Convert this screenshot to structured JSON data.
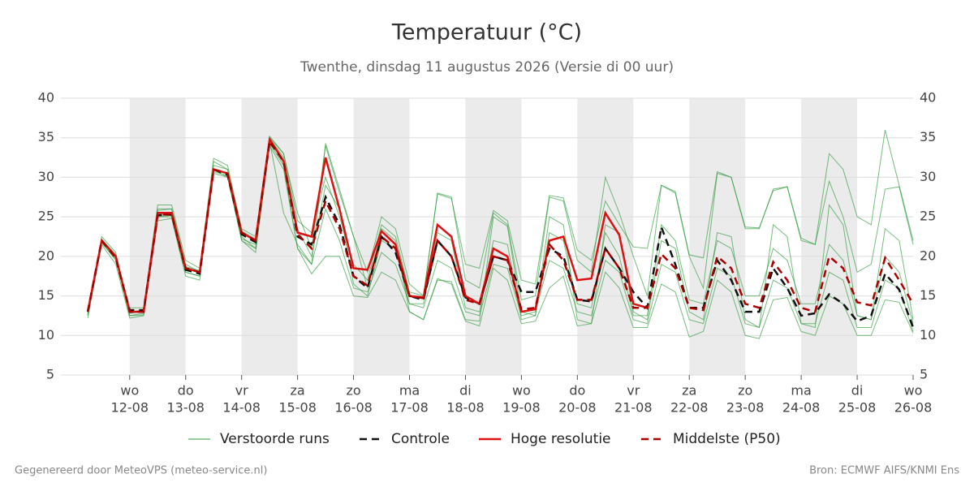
{
  "chart_data": {
    "type": "line",
    "title": "Temperatuur (°C)",
    "subtitle": "Twenthe, dinsdag 11 augustus 2026 (Versie di 00 uur)",
    "footer_left": "Gegenereerd door MeteoVPS (meteo-service.nl)",
    "footer_right": "Bron: ECMWF AIFS/KNMI Ens",
    "x": [
      11.25,
      11.5,
      11.75,
      12,
      12.25,
      12.5,
      12.75,
      13,
      13.25,
      13.5,
      13.75,
      14,
      14.25,
      14.5,
      14.75,
      15,
      15.25,
      15.5,
      15.75,
      16,
      16.25,
      16.5,
      16.75,
      17,
      17.25,
      17.5,
      17.75,
      18,
      18.25,
      18.5,
      18.75,
      19,
      19.25,
      19.5,
      19.75,
      20,
      20.25,
      20.5,
      20.75,
      21,
      21.25,
      21.5,
      21.75,
      22,
      22.25,
      22.5,
      22.75,
      23,
      23.25,
      23.5,
      23.75,
      24,
      24.25,
      24.5,
      24.75,
      25,
      25.25,
      25.5,
      25.75,
      26
    ],
    "xlim": [
      10.77,
      26
    ],
    "xticks": [
      {
        "value": 12,
        "day": "wo",
        "label": "12-08"
      },
      {
        "value": 13,
        "day": "do",
        "label": "13-08"
      },
      {
        "value": 14,
        "day": "vr",
        "label": "14-08"
      },
      {
        "value": 15,
        "day": "za",
        "label": "15-08"
      },
      {
        "value": 16,
        "day": "zo",
        "label": "16-08"
      },
      {
        "value": 17,
        "day": "ma",
        "label": "17-08"
      },
      {
        "value": 18,
        "day": "di",
        "label": "18-08"
      },
      {
        "value": 19,
        "day": "wo",
        "label": "19-08"
      },
      {
        "value": 20,
        "day": "do",
        "label": "20-08"
      },
      {
        "value": 21,
        "day": "vr",
        "label": "21-08"
      },
      {
        "value": 22,
        "day": "za",
        "label": "22-08"
      },
      {
        "value": 23,
        "day": "zo",
        "label": "23-08"
      },
      {
        "value": 24,
        "day": "ma",
        "label": "24-08"
      },
      {
        "value": 25,
        "day": "di",
        "label": "25-08"
      },
      {
        "value": 26,
        "day": "wo",
        "label": "26-08"
      }
    ],
    "ylim": [
      5,
      40
    ],
    "yticks": [
      5,
      10,
      15,
      20,
      25,
      30,
      35,
      40
    ],
    "grid": true,
    "series": [
      {
        "name": "Verstoorde runs",
        "color": "#2e9a3a",
        "dash": false,
        "runs": [
          [
            12.5,
            22.5,
            20.5,
            12.5,
            12.8,
            26,
            26,
            19,
            18,
            32,
            31,
            22,
            21,
            35,
            33,
            25.5,
            21,
            34,
            28,
            22.5,
            18,
            25,
            23.5,
            16.5,
            15,
            28,
            27.5,
            17,
            16,
            25.5,
            24,
            14.5,
            15,
            27.5,
            27,
            19.5,
            18,
            30,
            25.5,
            20,
            15,
            29,
            28,
            20,
            16,
            30.5,
            30,
            23.5,
            23.5,
            28.5,
            28.8,
            22,
            21.5,
            33,
            31,
            25,
            24,
            36,
            29,
            22
          ],
          [
            12.2,
            21.5,
            19,
            12.2,
            12.5,
            24.5,
            24.8,
            17.5,
            17,
            30.5,
            30,
            22,
            20.5,
            34,
            31,
            21,
            17.8,
            20,
            20,
            15,
            14.8,
            18,
            17,
            13,
            12,
            17.2,
            16.5,
            11.8,
            11.2,
            18.5,
            17,
            11.5,
            11.8,
            16,
            17.5,
            11.2,
            11.5,
            18,
            16,
            11,
            11,
            16.5,
            15.5,
            9.8,
            10.5,
            17,
            15.5,
            10,
            9.6,
            14.5,
            14.8,
            10.5,
            10,
            15,
            14,
            10,
            10,
            14.5,
            14.2,
            10.3
          ],
          [
            13,
            22,
            20,
            13.5,
            13.5,
            26.5,
            26.5,
            19.5,
            18.5,
            32.4,
            31.5,
            23.5,
            22.5,
            35.2,
            33,
            24.5,
            23,
            30,
            25,
            19,
            17,
            24,
            22.5,
            15.5,
            15,
            27.9,
            27.3,
            19,
            18.5,
            25.8,
            24.5,
            17,
            16.5,
            27.7,
            27.4,
            20.8,
            19.5,
            27,
            24,
            21.2,
            21,
            29,
            28.2,
            20.2,
            19.8,
            30.7,
            30,
            23.7,
            23.6,
            28.3,
            28.8,
            22.3,
            21.5,
            29.5,
            25,
            18,
            19,
            28.5,
            28.8,
            21.5
          ],
          [
            12.8,
            21.8,
            19.5,
            12.8,
            13,
            25,
            25,
            18,
            17.5,
            31,
            30,
            22.5,
            21,
            34.5,
            25.5,
            21.5,
            19,
            34.3,
            28.5,
            22.5,
            16,
            23.5,
            22,
            13,
            12,
            17,
            16.8,
            12,
            11.8,
            25,
            23.8,
            13,
            12.5,
            25,
            24,
            12,
            11.5,
            24,
            23,
            13,
            12,
            22,
            21,
            13,
            12,
            23,
            22.5,
            12,
            11,
            24,
            22.5,
            11.5,
            11,
            26.5,
            24,
            12.5,
            12,
            23.5,
            22,
            12
          ],
          [
            13.2,
            22.2,
            20.2,
            12.5,
            12.6,
            25.8,
            26,
            18.7,
            18.2,
            31.5,
            31,
            23.2,
            22.2,
            34.9,
            32.5,
            23.5,
            20,
            29,
            26,
            16.5,
            15,
            22,
            21,
            14,
            14,
            23,
            22,
            13.5,
            13,
            22,
            21.5,
            12,
            12.5,
            23,
            22,
            14,
            13.5,
            23,
            20,
            12.5,
            12.5,
            24,
            22,
            14.5,
            14,
            22,
            21,
            15,
            15,
            21,
            19.5,
            14,
            14,
            21.5,
            19.5,
            12.5,
            12,
            20,
            18,
            11.5
          ],
          [
            12.6,
            21.7,
            19.7,
            13,
            13.2,
            25,
            25.2,
            18,
            17.5,
            30.7,
            30.2,
            22.2,
            21.5,
            34.3,
            31.5,
            21,
            19,
            26,
            22,
            16,
            15.5,
            20.5,
            19,
            14,
            13.5,
            19.5,
            18.5,
            13,
            12.5,
            19,
            18.5,
            12.5,
            13,
            19.5,
            18.5,
            13,
            12.5,
            19.5,
            18,
            12,
            11.5,
            19,
            18,
            12,
            11.5,
            18.5,
            17.5,
            11.5,
            11,
            17,
            16,
            11.5,
            11.5,
            18,
            17,
            11,
            11,
            17,
            16,
            10.5
          ]
        ]
      },
      {
        "name": "Controle",
        "color": "#111111",
        "dash": true,
        "values": [
          13,
          22,
          19.8,
          13.2,
          13.2,
          25.2,
          25.3,
          18.3,
          17.8,
          31,
          30.3,
          22.8,
          21.8,
          34.5,
          32,
          22.5,
          21.5,
          27.5,
          24,
          17.5,
          16,
          22.5,
          20.5,
          15,
          14.5,
          22,
          20,
          14.8,
          14,
          20,
          19.5,
          15.5,
          15.5,
          21,
          20,
          14.5,
          14.3,
          21,
          18.5,
          15.5,
          13.5,
          23.7,
          19,
          13.5,
          13.5,
          19.5,
          17,
          13,
          13,
          18.5,
          16,
          12.5,
          12.8,
          15.2,
          14,
          11.8,
          12.5,
          17.8,
          15.8,
          11
        ]
      },
      {
        "name": "Hoge resolutie",
        "color": "#dd1111",
        "dash": false,
        "values": [
          13,
          22,
          20,
          13,
          13,
          25.5,
          25.5,
          18.5,
          18,
          31,
          30.5,
          23,
          22,
          34.8,
          32,
          23,
          22.5,
          32.5,
          26,
          18.5,
          18.3,
          23.2,
          21.5,
          15,
          14.8,
          24,
          22.5,
          15,
          14,
          21,
          20,
          13,
          13.3,
          22,
          22.5,
          17,
          17.2,
          25.5,
          22.7,
          14,
          13.5,
          null,
          null,
          null,
          null,
          null,
          null,
          null,
          null,
          null,
          null,
          null,
          null,
          null,
          null,
          null,
          null,
          null,
          null,
          null
        ]
      },
      {
        "name": "Middelste (P50)",
        "color": "#aa0000",
        "dash": true,
        "values": [
          13,
          22,
          19.8,
          13,
          13,
          25.3,
          25.3,
          18.5,
          18,
          31,
          30.5,
          23,
          22,
          34.6,
          32,
          22.8,
          21,
          27,
          23.5,
          17.5,
          16.3,
          22.5,
          21,
          15,
          14.7,
          22,
          20,
          14.5,
          14,
          20,
          19.5,
          13.3,
          13.5,
          21.5,
          19.5,
          14.5,
          14.5,
          21,
          18.5,
          13.5,
          13.5,
          20.3,
          18.5,
          13.5,
          13.2,
          20,
          18.5,
          14,
          13.5,
          19.3,
          17,
          13.5,
          13,
          20,
          18.5,
          14.2,
          13.8,
          19.8,
          17,
          14
        ]
      }
    ]
  }
}
